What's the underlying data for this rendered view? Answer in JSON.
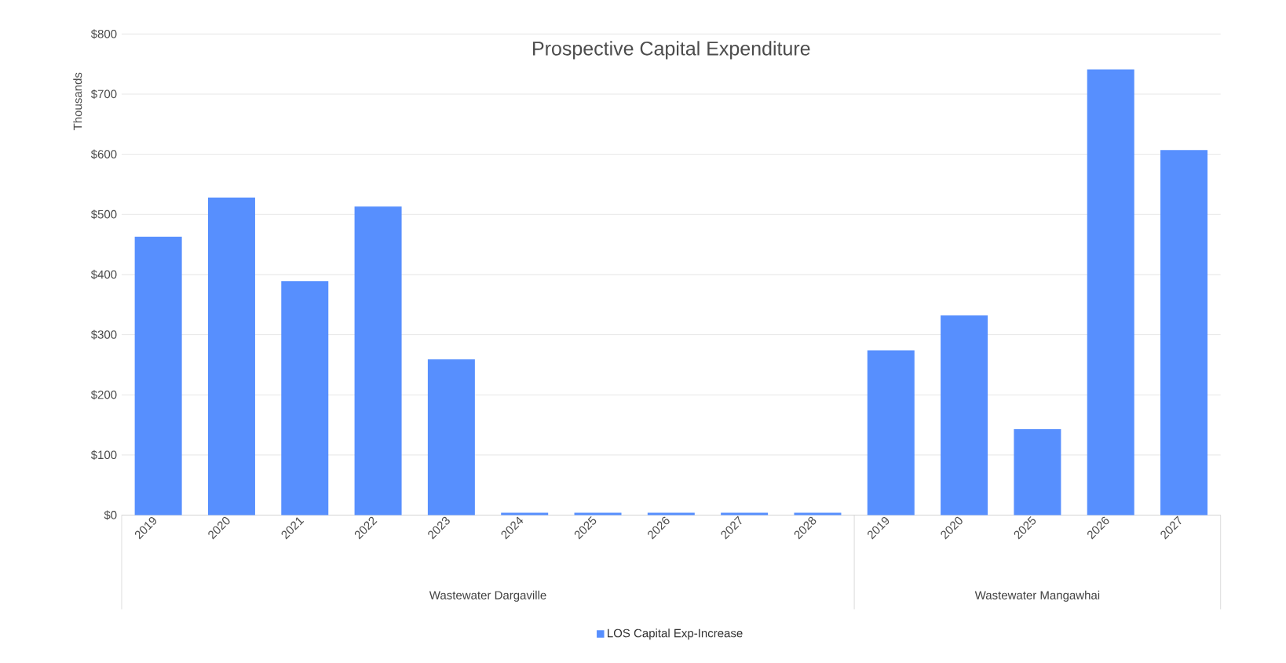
{
  "chart_data": {
    "type": "bar",
    "title": "Prospective Capital Expenditure",
    "ylabel": "Thousands",
    "categories": [
      "2019",
      "2020",
      "2021",
      "2022",
      "2023",
      "2024",
      "2025",
      "2026",
      "2027",
      "2028",
      "2019",
      "2020",
      "2025",
      "2026",
      "2027"
    ],
    "series": [
      {
        "name": "LOS Capital Exp-Increase",
        "color": "#578ffe",
        "values": [
          463,
          528,
          389,
          513,
          259,
          4,
          4,
          4,
          4,
          4,
          274,
          332,
          143,
          741,
          607
        ]
      }
    ],
    "annotations": [
      "Wastewater Dargaville",
      "Wastewater Mangawhai"
    ],
    "ylim": [
      0,
      800
    ],
    "yticks": [
      {
        "value": 0,
        "label": "$0"
      },
      {
        "value": 100,
        "label": "$100"
      },
      {
        "value": 200,
        "label": "$200"
      },
      {
        "value": 300,
        "label": "$300"
      },
      {
        "value": 400,
        "label": "$400"
      },
      {
        "value": 500,
        "label": "$500"
      },
      {
        "value": 600,
        "label": "$600"
      },
      {
        "value": 700,
        "label": "$700"
      },
      {
        "value": 800,
        "label": "$800"
      }
    ],
    "grid": "y",
    "legend": "bottom"
  }
}
